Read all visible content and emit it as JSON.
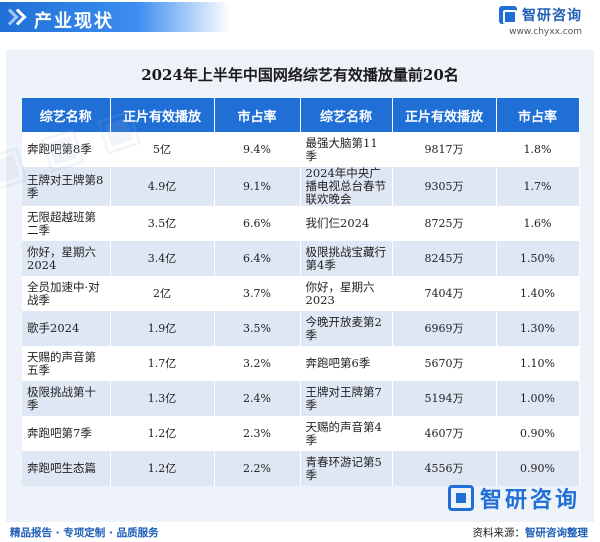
{
  "header": {
    "title": "产业现状",
    "brand_name": "智研咨询",
    "brand_url": "www.chyxx.com"
  },
  "chart_title": "2024年上半年中国网络综艺有效播放量前20名",
  "table": {
    "headers": [
      "综艺名称",
      "正片有效播放",
      "市占率",
      "综艺名称",
      "正片有效播放",
      "市占率"
    ],
    "rows": [
      [
        "奔跑吧第8季",
        "5亿",
        "9.4%",
        "最强大脑第11季",
        "9817万",
        "1.8%"
      ],
      [
        "王牌对王牌第8季",
        "4.9亿",
        "9.1%",
        "2024年中央广播电视总台春节联欢晚会",
        "9305万",
        "1.7%"
      ],
      [
        "无限超越班第二季",
        "3.5亿",
        "6.6%",
        "我们仨2024",
        "8725万",
        "1.6%"
      ],
      [
        "你好，星期六2024",
        "3.4亿",
        "6.4%",
        "极限挑战宝藏行第4季",
        "8245万",
        "1.50%"
      ],
      [
        "全员加速中·对战季",
        "2亿",
        "3.7%",
        "你好，星期六2023",
        "7404万",
        "1.40%"
      ],
      [
        "歌手2024",
        "1.9亿",
        "3.5%",
        "今晚开放麦第2季",
        "6969万",
        "1.30%"
      ],
      [
        "天赐的声音第五季",
        "1.7亿",
        "3.2%",
        "奔跑吧第6季",
        "5670万",
        "1.10%"
      ],
      [
        "极限挑战第十季",
        "1.3亿",
        "2.4%",
        "王牌对王牌第7季",
        "5194万",
        "1.00%"
      ],
      [
        "奔跑吧第7季",
        "1.2亿",
        "2.3%",
        "天赐的声音第4季",
        "4607万",
        "0.90%"
      ],
      [
        "奔跑吧生态篇",
        "1.2亿",
        "2.2%",
        "青春环游记第5季",
        "4556万",
        "0.90%"
      ]
    ]
  },
  "footer": {
    "left": "精品报告 · 专项定制 · 品质服务",
    "source_label": "资料来源：",
    "source_name": "智研咨询整理",
    "watermark_brand": "智研咨询"
  },
  "colors": {
    "accent": "#1f6fd6",
    "row_alt": "#dfe7f4",
    "card_bg": "#eef2f9"
  }
}
